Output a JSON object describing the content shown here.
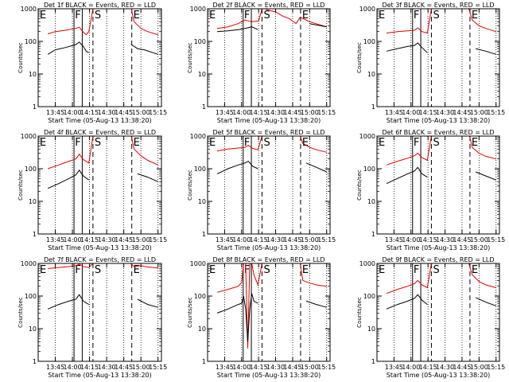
{
  "figure": {
    "x_tick_labels": [
      "13:45",
      "14:00",
      "14:15",
      "14:30",
      "14:45",
      "15:00",
      "15:15"
    ],
    "y_tick_labels": [
      "1",
      "10",
      "100",
      "1000"
    ],
    "xlabel": "Start Time (05-Aug-13 13:38:20)",
    "ylabel": "Counts/sec",
    "markers": [
      "E",
      "F",
      "S",
      "E"
    ]
  },
  "chart_data": [
    {
      "type": "line",
      "title": "Det 1f BLACK = Events, RED = LLD",
      "xlabel": "Start Time (05-Aug-13 13:38:20)",
      "ylabel": "Counts/sec",
      "yscale": "log",
      "ylim": [
        1,
        1000
      ],
      "x_ticks": [
        "13:45",
        "14:00",
        "14:15",
        "14:30",
        "14:45",
        "15:00",
        "15:15"
      ],
      "markers": [
        {
          "label": "E",
          "time": "13:38"
        },
        {
          "label": "F",
          "time": "14:05"
        },
        {
          "label": "S",
          "time": "14:18"
        },
        {
          "label": "E",
          "time": "14:52"
        }
      ],
      "series": [
        {
          "name": "RED",
          "color": "#e00000",
          "x": [
            13.64,
            13.75,
            13.9,
            14.05,
            14.1,
            14.16,
            14.2,
            14.24,
            14.3,
            14.34,
            14.5,
            14.56,
            14.86,
            14.9,
            15.0,
            15.1,
            15.25
          ],
          "y": [
            170,
            200,
            220,
            250,
            270,
            190,
            160,
            200,
            1000,
            1000,
            1000,
            1000,
            1000,
            400,
            250,
            200,
            160
          ]
        },
        {
          "name": "BLACK",
          "color": "#000000",
          "x": [
            13.64,
            13.75,
            13.9,
            14.05,
            14.1,
            14.16,
            14.2,
            14.24,
            14.82,
            14.86,
            14.95,
            15.05,
            15.25
          ],
          "y": [
            40,
            55,
            65,
            80,
            95,
            70,
            50,
            45,
            null,
            80,
            60,
            55,
            40
          ]
        }
      ]
    },
    {
      "type": "line",
      "title": "Det 2f BLACK = Events, RED = LLD",
      "xlabel": "Start Time (05-Aug-13 13:38:20)",
      "ylabel": "Counts/sec",
      "yscale": "log",
      "ylim": [
        1,
        1000
      ],
      "x_ticks": [
        "13:45",
        "14:00",
        "14:15",
        "14:30",
        "14:45",
        "15:00",
        "15:15"
      ],
      "markers": [
        {
          "label": "E",
          "time": "13:38"
        },
        {
          "label": "F",
          "time": "14:05"
        },
        {
          "label": "S",
          "time": "14:18"
        },
        {
          "label": "E",
          "time": "14:52"
        }
      ],
      "series": [
        {
          "name": "RED",
          "color": "#e00000",
          "x": [
            13.64,
            13.8,
            13.95,
            14.05,
            14.15,
            14.25,
            14.3,
            14.35,
            14.4,
            14.5,
            14.6,
            14.7,
            14.8,
            14.86,
            15.0,
            15.25
          ],
          "y": [
            250,
            280,
            350,
            450,
            400,
            420,
            1000,
            1000,
            900,
            800,
            600,
            500,
            350,
            550,
            400,
            280
          ]
        },
        {
          "name": "BLACK",
          "color": "#000000",
          "x": [
            13.64,
            13.8,
            13.95,
            14.05,
            14.15,
            14.24,
            14.86,
            15.0,
            15.25
          ],
          "y": [
            200,
            210,
            230,
            250,
            280,
            230,
            null,
            350,
            280
          ]
        }
      ]
    },
    {
      "type": "line",
      "title": "Det 3f BLACK = Events, RED = LLD",
      "xlabel": "Start Time (05-Aug-13 13:38:20)",
      "ylabel": "Counts/sec",
      "yscale": "log",
      "ylim": [
        1,
        1000
      ],
      "x_ticks": [
        "13:45",
        "14:00",
        "14:15",
        "14:30",
        "14:45",
        "15:00",
        "15:15"
      ],
      "markers": [
        {
          "label": "E",
          "time": "13:38"
        },
        {
          "label": "F",
          "time": "14:05"
        },
        {
          "label": "S",
          "time": "14:18"
        },
        {
          "label": "E",
          "time": "14:52"
        }
      ],
      "series": [
        {
          "name": "RED",
          "color": "#e00000",
          "x": [
            13.64,
            13.8,
            13.95,
            14.05,
            14.1,
            14.16,
            14.24,
            14.3,
            14.85,
            14.9,
            15.0,
            15.1,
            15.25
          ],
          "y": [
            180,
            200,
            210,
            220,
            260,
            200,
            180,
            1000,
            1000,
            450,
            300,
            250,
            200
          ]
        },
        {
          "name": "BLACK",
          "color": "#000000",
          "x": [
            13.64,
            13.8,
            13.95,
            14.05,
            14.1,
            14.16,
            14.24,
            14.86,
            14.95,
            15.1,
            15.25
          ],
          "y": [
            50,
            60,
            70,
            75,
            90,
            65,
            45,
            null,
            60,
            50,
            40
          ]
        }
      ]
    },
    {
      "type": "line",
      "title": "Det 4f BLACK = Events, RED = LLD",
      "xlabel": "Start Time (05-Aug-13 13:38:20)",
      "ylabel": "Counts/sec",
      "yscale": "log",
      "ylim": [
        1,
        1000
      ],
      "x_ticks": [
        "13:45",
        "14:00",
        "14:15",
        "14:30",
        "14:45",
        "15:00",
        "15:15"
      ],
      "markers": [
        {
          "label": "E",
          "time": "13:38"
        },
        {
          "label": "F",
          "time": "14:05"
        },
        {
          "label": "S",
          "time": "14:18"
        },
        {
          "label": "E",
          "time": "14:52"
        }
      ],
      "series": [
        {
          "name": "RED",
          "color": "#e00000",
          "x": [
            13.64,
            13.8,
            13.95,
            14.05,
            14.1,
            14.16,
            14.24,
            14.3,
            14.86,
            14.9,
            15.0,
            15.1,
            15.25
          ],
          "y": [
            100,
            130,
            170,
            200,
            280,
            190,
            150,
            1000,
            1000,
            400,
            250,
            180,
            130
          ]
        },
        {
          "name": "BLACK",
          "color": "#000000",
          "x": [
            13.64,
            13.8,
            13.95,
            14.05,
            14.1,
            14.16,
            14.24,
            14.86,
            14.95,
            15.1,
            15.25
          ],
          "y": [
            25,
            35,
            50,
            65,
            90,
            60,
            45,
            null,
            70,
            55,
            40
          ]
        }
      ]
    },
    {
      "type": "line",
      "title": "Det 5f BLACK = Events, RED = LLD",
      "xlabel": "Start Time (05-Aug-13 13:38:20)",
      "ylabel": "Counts/sec",
      "yscale": "log",
      "ylim": [
        1,
        1000
      ],
      "x_ticks": [
        "13:45",
        "14:00",
        "14:15",
        "14:30",
        "14:45",
        "15:00",
        "15:15"
      ],
      "markers": [
        {
          "label": "E",
          "time": "13:38"
        },
        {
          "label": "F",
          "time": "14:05"
        },
        {
          "label": "S",
          "time": "14:18"
        },
        {
          "label": "E",
          "time": "14:52"
        }
      ],
      "series": [
        {
          "name": "RED",
          "color": "#e00000",
          "x": [
            13.64,
            13.8,
            13.95,
            14.05,
            14.1,
            14.16,
            14.24,
            14.3,
            14.86,
            14.9,
            15.0,
            15.1,
            15.25
          ],
          "y": [
            350,
            400,
            430,
            450,
            520,
            420,
            380,
            1000,
            1000,
            600,
            450,
            380,
            320
          ]
        },
        {
          "name": "BLACK",
          "color": "#000000",
          "x": [
            13.64,
            13.8,
            13.95,
            14.05,
            14.1,
            14.16,
            14.24,
            14.86,
            14.95,
            15.1,
            15.25
          ],
          "y": [
            70,
            100,
            130,
            150,
            170,
            120,
            100,
            null,
            150,
            110,
            80
          ]
        }
      ]
    },
    {
      "type": "line",
      "title": "Det 6f BLACK = Events, RED = LLD",
      "xlabel": "Start Time (05-Aug-13 13:38:20)",
      "ylabel": "Counts/sec",
      "yscale": "log",
      "ylim": [
        1,
        1000
      ],
      "x_ticks": [
        "13:45",
        "14:00",
        "14:15",
        "14:30",
        "14:45",
        "15:00",
        "15:15"
      ],
      "markers": [
        {
          "label": "E",
          "time": "13:38"
        },
        {
          "label": "F",
          "time": "14:05"
        },
        {
          "label": "S",
          "time": "14:18"
        },
        {
          "label": "E",
          "time": "14:52"
        }
      ],
      "series": [
        {
          "name": "RED",
          "color": "#e00000",
          "x": [
            13.64,
            13.8,
            13.95,
            14.05,
            14.1,
            14.16,
            14.24,
            14.3,
            14.86,
            14.9,
            15.0,
            15.1,
            15.25
          ],
          "y": [
            130,
            170,
            210,
            250,
            300,
            220,
            180,
            1000,
            1000,
            450,
            300,
            240,
            200
          ]
        },
        {
          "name": "BLACK",
          "color": "#000000",
          "x": [
            13.64,
            13.8,
            13.95,
            14.05,
            14.1,
            14.16,
            14.24,
            14.86,
            14.95,
            15.1,
            15.25
          ],
          "y": [
            35,
            50,
            70,
            85,
            110,
            70,
            55,
            null,
            80,
            60,
            45
          ]
        }
      ]
    },
    {
      "type": "line",
      "title": "Det 7f BLACK = Events, RED = LLD",
      "xlabel": "Start Time (05-Aug-13 13:38:20)",
      "ylabel": "Counts/sec",
      "yscale": "log",
      "ylim": [
        1,
        1000
      ],
      "x_ticks": [
        "13:45",
        "14:00",
        "14:15",
        "14:30",
        "14:45",
        "15:00",
        "15:15"
      ],
      "markers": [
        {
          "label": "E",
          "time": "13:38"
        },
        {
          "label": "F",
          "time": "14:05"
        },
        {
          "label": "S",
          "time": "14:18"
        },
        {
          "label": "E",
          "time": "14:52"
        }
      ],
      "series": [
        {
          "name": "RED",
          "color": "#e00000",
          "x": [
            13.64,
            13.8,
            13.95,
            14.05,
            14.1,
            14.16,
            14.24,
            14.3,
            14.85,
            14.9,
            15.0,
            15.1,
            15.25
          ],
          "y": [
            700,
            750,
            800,
            850,
            950,
            800,
            750,
            1000,
            1000,
            800,
            850,
            780,
            720
          ]
        },
        {
          "name": "BLACK",
          "color": "#000000",
          "x": [
            13.64,
            13.8,
            13.95,
            14.05,
            14.1,
            14.16,
            14.24,
            14.86,
            14.95,
            15.1,
            15.25
          ],
          "y": [
            40,
            55,
            70,
            80,
            110,
            70,
            55,
            null,
            80,
            55,
            45
          ]
        }
      ]
    },
    {
      "type": "line",
      "title": "Det 8f BLACK = Events, RED = LLD",
      "xlabel": "Start Time (05-Aug-13 13:38:20)",
      "ylabel": "Counts/sec",
      "yscale": "log",
      "ylim": [
        1,
        1000
      ],
      "x_ticks": [
        "13:45",
        "14:00",
        "14:15",
        "14:30",
        "14:45",
        "15:00",
        "15:15"
      ],
      "markers": [
        {
          "label": "E",
          "time": "13:38"
        },
        {
          "label": "F",
          "time": "14:05"
        },
        {
          "label": "S",
          "time": "14:18"
        },
        {
          "label": "E",
          "time": "14:52"
        }
      ],
      "series": [
        {
          "name": "RED",
          "color": "#e00000",
          "x": [
            13.64,
            13.8,
            13.95,
            14.0,
            14.03,
            14.06,
            14.09,
            14.12,
            14.15,
            14.18,
            14.24,
            14.3,
            14.86,
            14.9,
            15.0,
            15.1,
            15.25
          ],
          "y": [
            130,
            160,
            200,
            260,
            1000,
            1000,
            2.5,
            1000,
            1000,
            450,
            220,
            1000,
            1000,
            300,
            250,
            220,
            200
          ]
        },
        {
          "name": "BLACK",
          "color": "#000000",
          "x": [
            13.64,
            13.8,
            13.95,
            14.0,
            14.03,
            14.06,
            14.09,
            14.12,
            14.15,
            14.18,
            14.24,
            14.86,
            14.95,
            15.1,
            15.25
          ],
          "y": [
            30,
            40,
            55,
            60,
            100,
            40,
            4,
            40,
            120,
            70,
            60,
            null,
            70,
            55,
            45
          ]
        }
      ]
    },
    {
      "type": "line",
      "title": "Det 9f BLACK = Events, RED = LLD",
      "xlabel": "Start Time (05-Aug-13 13:38:20)",
      "ylabel": "Counts/sec",
      "yscale": "log",
      "ylim": [
        1,
        1000
      ],
      "x_ticks": [
        "13:45",
        "14:00",
        "14:15",
        "14:30",
        "14:45",
        "15:00",
        "15:15"
      ],
      "markers": [
        {
          "label": "E",
          "time": "13:38"
        },
        {
          "label": "F",
          "time": "14:05"
        },
        {
          "label": "S",
          "time": "14:18"
        },
        {
          "label": "E",
          "time": "14:52"
        }
      ],
      "series": [
        {
          "name": "RED",
          "color": "#e00000",
          "x": [
            13.64,
            13.8,
            13.95,
            14.05,
            14.1,
            14.16,
            14.24,
            14.3,
            14.85,
            14.9,
            15.0,
            15.1,
            15.25
          ],
          "y": [
            120,
            160,
            200,
            240,
            300,
            220,
            180,
            1000,
            1000,
            450,
            280,
            220,
            180
          ]
        },
        {
          "name": "BLACK",
          "color": "#000000",
          "x": [
            13.64,
            13.8,
            13.95,
            14.05,
            14.1,
            14.16,
            14.24,
            14.86,
            14.95,
            15.1,
            15.25
          ],
          "y": [
            40,
            55,
            70,
            85,
            110,
            75,
            55,
            null,
            90,
            65,
            50
          ]
        }
      ]
    }
  ]
}
